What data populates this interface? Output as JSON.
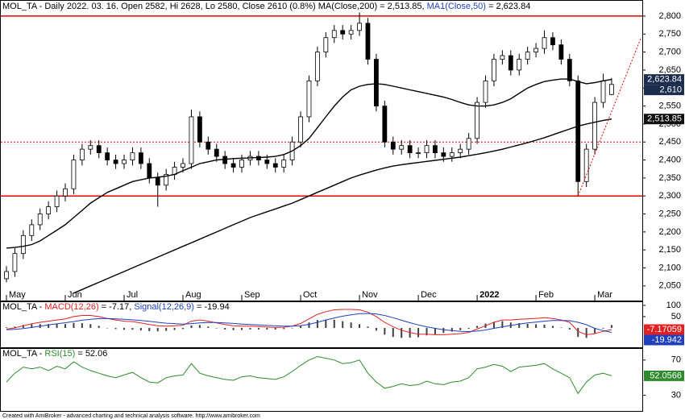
{
  "chart_data": [
    {
      "type": "candlestick",
      "title_parts": [
        {
          "text": "MOL_TA - Daily 2022. 03. 16. Open 2582, Hi 2628, Lo 2580, Close 2610 (0.8%) ",
          "color": "#000000"
        },
        {
          "text": "MA(Close,200)",
          "color": "#000000"
        },
        {
          "text": " = 2,513.85, ",
          "color": "#000000"
        },
        {
          "text": "MA1(Close,50)",
          "color": "#1f3fbf"
        },
        {
          "text": " = 2,623.84",
          "color": "#000000"
        }
      ],
      "categories": [
        "May",
        null,
        null,
        null,
        null,
        null,
        null,
        "Jun",
        null,
        null,
        null,
        null,
        null,
        null,
        "Jul",
        null,
        null,
        null,
        null,
        null,
        null,
        "Aug",
        null,
        null,
        null,
        null,
        null,
        null,
        "Sep",
        null,
        null,
        null,
        null,
        null,
        null,
        "Oct",
        null,
        null,
        null,
        null,
        null,
        null,
        "Nov",
        null,
        null,
        null,
        null,
        null,
        null,
        "Dec",
        null,
        null,
        null,
        null,
        null,
        null,
        "2022",
        null,
        null,
        null,
        null,
        null,
        null,
        "Feb",
        null,
        null,
        null,
        null,
        null,
        null,
        "Mar",
        null,
        null
      ],
      "open": [
        2070,
        2090,
        2140,
        2190,
        2220,
        2250,
        2270,
        2300,
        2320,
        2400,
        2430,
        2440,
        2420,
        2400,
        2390,
        2400,
        2420,
        2390,
        2350,
        2330,
        2360,
        2380,
        2390,
        2520,
        2450,
        2430,
        2410,
        2390,
        2380,
        2400,
        2410,
        2400,
        2390,
        2380,
        2400,
        2450,
        2520,
        2620,
        2700,
        2740,
        2760,
        2750,
        2760,
        2780,
        2680,
        2550,
        2450,
        2430,
        2440,
        2420,
        2420,
        2440,
        2420,
        2410,
        2420,
        2430,
        2460,
        2560,
        2620,
        2680,
        2690,
        2650,
        2680,
        2700,
        2710,
        2740,
        2720,
        2680,
        2620,
        2340,
        2430,
        2560,
        2582
      ],
      "high": [
        2105,
        2155,
        2205,
        2235,
        2265,
        2285,
        2315,
        2335,
        2415,
        2445,
        2455,
        2455,
        2435,
        2415,
        2415,
        2435,
        2435,
        2405,
        2365,
        2375,
        2395,
        2405,
        2540,
        2535,
        2465,
        2445,
        2425,
        2405,
        2415,
        2425,
        2425,
        2415,
        2405,
        2415,
        2465,
        2535,
        2635,
        2715,
        2755,
        2775,
        2775,
        2775,
        2810,
        2795,
        2695,
        2565,
        2465,
        2455,
        2455,
        2435,
        2455,
        2455,
        2435,
        2435,
        2445,
        2475,
        2575,
        2635,
        2695,
        2705,
        2705,
        2695,
        2715,
        2725,
        2760,
        2755,
        2735,
        2695,
        2635,
        2445,
        2575,
        2640,
        2628
      ],
      "low": [
        2060,
        2075,
        2125,
        2175,
        2205,
        2235,
        2255,
        2285,
        2305,
        2385,
        2415,
        2405,
        2385,
        2375,
        2375,
        2385,
        2375,
        2335,
        2270,
        2315,
        2345,
        2365,
        2375,
        2435,
        2415,
        2395,
        2375,
        2365,
        2365,
        2385,
        2385,
        2375,
        2365,
        2365,
        2385,
        2435,
        2505,
        2605,
        2685,
        2725,
        2735,
        2735,
        2745,
        2665,
        2535,
        2435,
        2415,
        2415,
        2405,
        2405,
        2405,
        2405,
        2395,
        2395,
        2405,
        2415,
        2445,
        2545,
        2605,
        2665,
        2635,
        2635,
        2665,
        2685,
        2695,
        2705,
        2665,
        2605,
        2300,
        2325,
        2415,
        2545,
        2580
      ],
      "close": [
        2090,
        2140,
        2190,
        2220,
        2250,
        2270,
        2300,
        2320,
        2400,
        2430,
        2440,
        2420,
        2400,
        2390,
        2400,
        2420,
        2390,
        2350,
        2330,
        2360,
        2380,
        2390,
        2520,
        2450,
        2430,
        2410,
        2390,
        2380,
        2400,
        2410,
        2400,
        2390,
        2380,
        2400,
        2450,
        2520,
        2620,
        2700,
        2740,
        2760,
        2750,
        2760,
        2780,
        2680,
        2550,
        2450,
        2430,
        2440,
        2420,
        2420,
        2440,
        2420,
        2410,
        2420,
        2430,
        2460,
        2560,
        2620,
        2680,
        2690,
        2650,
        2680,
        2700,
        2710,
        2740,
        2720,
        2680,
        2620,
        2340,
        2430,
        2560,
        2620,
        2610
      ],
      "close_last_label": "2,610",
      "series": [
        {
          "name": "MA(Close,200)",
          "color": "#000000",
          "last_label": "2,513.85",
          "values": [
            null,
            null,
            null,
            null,
            null,
            null,
            null,
            null,
            2030,
            2040,
            2050,
            2060,
            2070,
            2080,
            2090,
            2100,
            2110,
            2120,
            2130,
            2140,
            2150,
            2160,
            2170,
            2180,
            2190,
            2200,
            2210,
            2220,
            2230,
            2240,
            2248,
            2256,
            2264,
            2272,
            2280,
            2290,
            2300,
            2310,
            2320,
            2330,
            2340,
            2350,
            2358,
            2365,
            2372,
            2378,
            2383,
            2387,
            2390,
            2393,
            2396,
            2399,
            2402,
            2405,
            2408,
            2412,
            2416,
            2420,
            2425,
            2430,
            2436,
            2442,
            2448,
            2455,
            2462,
            2470,
            2478,
            2486,
            2494,
            2500,
            2505,
            2510,
            2513.85
          ]
        },
        {
          "name": "MA1(Close,50)",
          "color": "#000000",
          "last_label": "2,623.84",
          "values": [
            2155,
            2157,
            2160,
            2165,
            2175,
            2190,
            2205,
            2220,
            2240,
            2260,
            2280,
            2295,
            2310,
            2320,
            2330,
            2340,
            2345,
            2350,
            2352,
            2355,
            2360,
            2370,
            2380,
            2390,
            2395,
            2400,
            2402,
            2404,
            2405,
            2406,
            2407,
            2408,
            2410,
            2415,
            2425,
            2440,
            2460,
            2490,
            2520,
            2550,
            2575,
            2595,
            2605,
            2610,
            2612,
            2610,
            2605,
            2600,
            2595,
            2590,
            2585,
            2580,
            2575,
            2568,
            2560,
            2553,
            2550,
            2550,
            2553,
            2560,
            2570,
            2585,
            2600,
            2610,
            2618,
            2622,
            2625,
            2625,
            2618,
            2612,
            2615,
            2620,
            2623.84
          ]
        }
      ],
      "hlines": [
        {
          "value": 2800,
          "style": "solid"
        },
        {
          "value": 2450,
          "style": "dotted"
        },
        {
          "value": 2300,
          "style": "solid"
        }
      ],
      "hline_color": "#e00000",
      "trendline": {
        "x": [
          68,
          75.5
        ],
        "values": [
          2300,
          2740
        ],
        "color": "#e00000"
      },
      "ylim": [
        2025,
        2820
      ],
      "yticks": [
        {
          "value": 2050,
          "label": "2,050"
        },
        {
          "value": 2100,
          "label": "2,100"
        },
        {
          "value": 2150,
          "label": "2,150"
        },
        {
          "value": 2200,
          "label": "2,200"
        },
        {
          "value": 2250,
          "label": "2,250"
        },
        {
          "value": 2300,
          "label": "2,300"
        },
        {
          "value": 2350,
          "label": "2,350"
        },
        {
          "value": 2400,
          "label": "2,400"
        },
        {
          "value": 2450,
          "label": "2,450"
        },
        {
          "value": 2500,
          "label": "2,500"
        },
        {
          "value": 2550,
          "label": "2,550"
        },
        {
          "value": 2600,
          "label": "2,600"
        },
        {
          "value": 2650,
          "label": "2,650"
        },
        {
          "value": 2700,
          "label": "2,700"
        },
        {
          "value": 2750,
          "label": "2,750"
        },
        {
          "value": 2800,
          "label": "2,800"
        }
      ]
    },
    {
      "type": "macd",
      "title_parts": [
        {
          "text": "MOL_TA - ",
          "color": "#000000"
        },
        {
          "text": "MACD(12,26)",
          "color": "#e02020"
        },
        {
          "text": " = -7.17, ",
          "color": "#000000"
        },
        {
          "text": "Signal(12,26,9)",
          "color": "#1f3fbf"
        },
        {
          "text": " = -19.94",
          "color": "#000000"
        }
      ],
      "series": [
        {
          "name": "MACD(12,26)",
          "color": "#e02020",
          "last_label": "-7.17059",
          "values": [
            -5,
            0,
            10,
            18,
            25,
            30,
            35,
            40,
            50,
            55,
            55,
            50,
            42,
            35,
            30,
            28,
            22,
            15,
            10,
            8,
            10,
            12,
            30,
            35,
            30,
            22,
            15,
            10,
            8,
            8,
            6,
            4,
            2,
            3,
            8,
            20,
            40,
            60,
            72,
            80,
            82,
            82,
            80,
            70,
            50,
            25,
            5,
            -10,
            -20,
            -28,
            -28,
            -30,
            -30,
            -28,
            -25,
            -20,
            -5,
            10,
            25,
            35,
            35,
            38,
            40,
            42,
            45,
            42,
            35,
            25,
            -15,
            -30,
            -25,
            -15,
            -7.17
          ]
        },
        {
          "name": "Signal(12,26,9)",
          "color": "#1f3fbf",
          "last_label": "-19.942",
          "values": [
            -8,
            -6,
            -3,
            2,
            8,
            13,
            18,
            23,
            28,
            34,
            38,
            41,
            42,
            40,
            38,
            36,
            33,
            29,
            25,
            21,
            19,
            17,
            19,
            22,
            24,
            24,
            22,
            20,
            17,
            15,
            13,
            11,
            9,
            8,
            8,
            10,
            16,
            25,
            35,
            44,
            52,
            58,
            63,
            64,
            62,
            55,
            45,
            34,
            23,
            13,
            5,
            -2,
            -8,
            -12,
            -15,
            -16,
            -14,
            -9,
            -2,
            5,
            11,
            17,
            22,
            26,
            30,
            33,
            33,
            32,
            25,
            14,
            -2,
            -12,
            -19.94
          ]
        }
      ],
      "histogram": {
        "color": "#404040",
        "values": [
          3,
          6,
          13,
          16,
          17,
          17,
          17,
          17,
          22,
          21,
          17,
          9,
          0,
          -5,
          -8,
          -8,
          -11,
          -14,
          -15,
          -13,
          -9,
          -5,
          11,
          13,
          6,
          -2,
          -7,
          -10,
          -9,
          -7,
          -7,
          -7,
          -7,
          -5,
          0,
          10,
          24,
          35,
          37,
          36,
          30,
          24,
          17,
          6,
          -12,
          -30,
          -40,
          -44,
          -43,
          -41,
          -33,
          -28,
          -22,
          -16,
          -10,
          -4,
          9,
          19,
          27,
          30,
          24,
          21,
          18,
          16,
          15,
          9,
          2,
          -7,
          -40,
          -44,
          -23,
          -3,
          12.77
        ]
      },
      "ylim": [
        -82,
        121
      ],
      "yticks": [
        100,
        50
      ]
    },
    {
      "type": "rsi",
      "title_parts": [
        {
          "text": "MOL_TA - ",
          "color": "#000000"
        },
        {
          "text": "RSI(15)",
          "color": "#2e8b2e"
        },
        {
          "text": " = 52.06",
          "color": "#000000"
        }
      ],
      "series": [
        {
          "name": "RSI(15)",
          "color": "#2e8b2e",
          "last_label": "52.0566",
          "values": [
            45,
            55,
            62,
            60,
            62,
            58,
            63,
            60,
            68,
            62,
            58,
            55,
            52,
            50,
            53,
            56,
            50,
            45,
            44,
            50,
            52,
            53,
            66,
            55,
            52,
            50,
            48,
            47,
            51,
            52,
            50,
            49,
            48,
            51,
            57,
            64,
            70,
            74,
            72,
            70,
            66,
            67,
            70,
            55,
            45,
            38,
            40,
            43,
            41,
            42,
            46,
            43,
            42,
            45,
            46,
            50,
            60,
            62,
            65,
            63,
            57,
            62,
            63,
            64,
            66,
            60,
            55,
            50,
            32,
            45,
            53,
            55,
            52.06
          ]
        }
      ],
      "ylim": [
        14,
        79
      ],
      "yticks": [
        70,
        30
      ]
    }
  ],
  "footer": "Created with AmiBroker - advanced charting and technical analysis software. http://www.amibroker.com"
}
